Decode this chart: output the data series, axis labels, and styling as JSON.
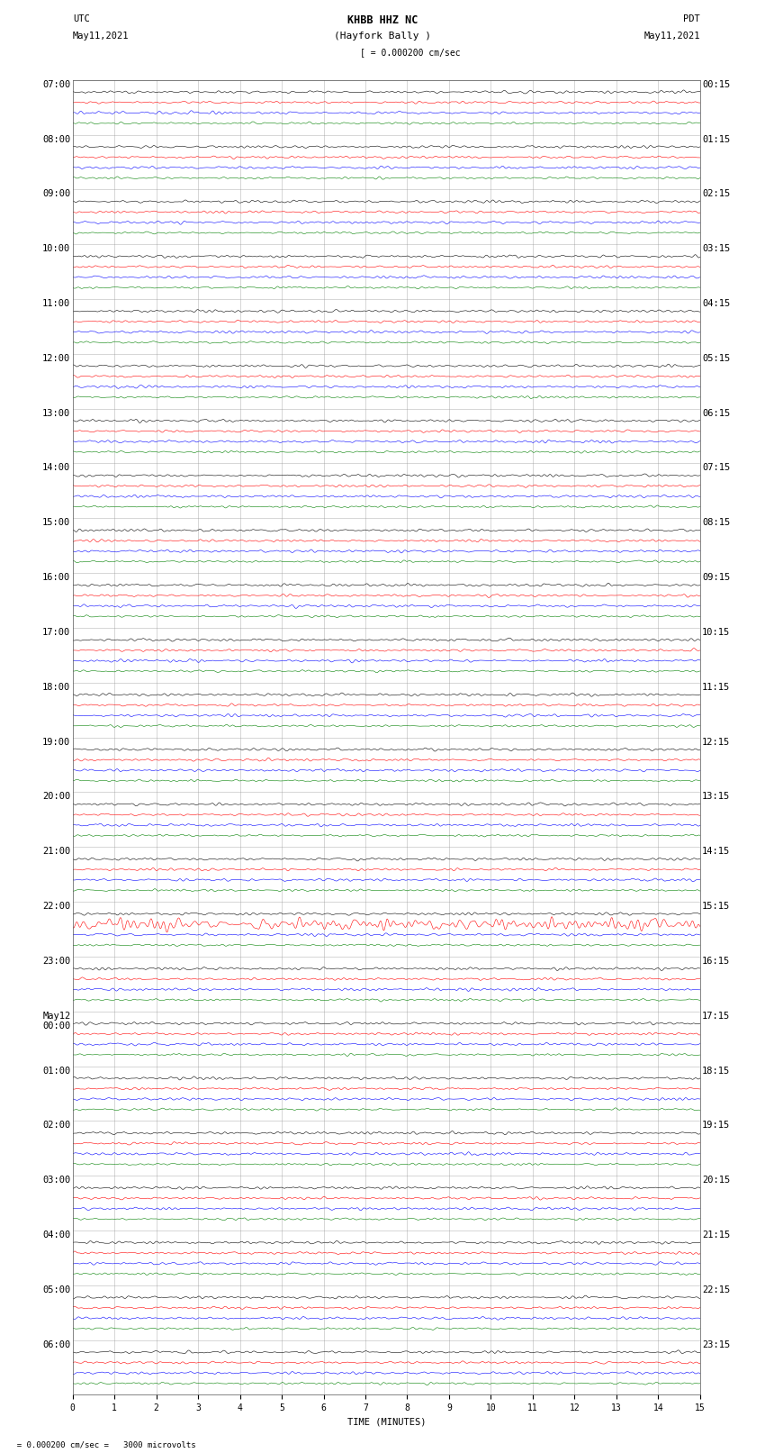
{
  "title_line1": "KHBB HHZ NC",
  "title_line2": "(Hayfork Bally )",
  "scale_label": "[ = 0.000200 cm/sec",
  "left_header1": "UTC",
  "left_header2": "May11,2021",
  "right_header1": "PDT",
  "right_header2": "May11,2021",
  "bottom_note": "  = 0.000200 cm/sec =   3000 microvolts",
  "xlabel": "TIME (MINUTES)",
  "xmin": 0,
  "xmax": 15,
  "xticks": [
    0,
    1,
    2,
    3,
    4,
    5,
    6,
    7,
    8,
    9,
    10,
    11,
    12,
    13,
    14,
    15
  ],
  "background_color": "#ffffff",
  "trace_colors": [
    "black",
    "red",
    "blue",
    "green"
  ],
  "rows": [
    {
      "left_label": "07:00",
      "right_label": "00:15"
    },
    {
      "left_label": "08:00",
      "right_label": "01:15"
    },
    {
      "left_label": "09:00",
      "right_label": "02:15"
    },
    {
      "left_label": "10:00",
      "right_label": "03:15"
    },
    {
      "left_label": "11:00",
      "right_label": "04:15"
    },
    {
      "left_label": "12:00",
      "right_label": "05:15"
    },
    {
      "left_label": "13:00",
      "right_label": "06:15"
    },
    {
      "left_label": "14:00",
      "right_label": "07:15"
    },
    {
      "left_label": "15:00",
      "right_label": "08:15"
    },
    {
      "left_label": "16:00",
      "right_label": "09:15"
    },
    {
      "left_label": "17:00",
      "right_label": "10:15"
    },
    {
      "left_label": "18:00",
      "right_label": "11:15"
    },
    {
      "left_label": "19:00",
      "right_label": "12:15"
    },
    {
      "left_label": "20:00",
      "right_label": "13:15"
    },
    {
      "left_label": "21:00",
      "right_label": "14:15"
    },
    {
      "left_label": "22:00",
      "right_label": "15:15"
    },
    {
      "left_label": "23:00",
      "right_label": "16:15"
    },
    {
      "left_label": "May12\n00:00",
      "right_label": "17:15"
    },
    {
      "left_label": "01:00",
      "right_label": "18:15"
    },
    {
      "left_label": "02:00",
      "right_label": "19:15"
    },
    {
      "left_label": "03:00",
      "right_label": "20:15"
    },
    {
      "left_label": "04:00",
      "right_label": "21:15"
    },
    {
      "left_label": "05:00",
      "right_label": "22:15"
    },
    {
      "left_label": "06:00",
      "right_label": "23:15"
    }
  ],
  "n_rows": 24,
  "traces_per_row": 4,
  "grid_color": "#999999",
  "grid_linewidth": 0.4,
  "trace_linewidth": 0.4,
  "label_fontsize": 7.5,
  "title_fontsize": 8.5,
  "axis_fontsize": 7,
  "special_row_red_idx": 15,
  "amp_scale": 0.01,
  "amp_scale_red": 0.009,
  "amp_scale_blue": 0.01,
  "amp_scale_green": 0.008
}
